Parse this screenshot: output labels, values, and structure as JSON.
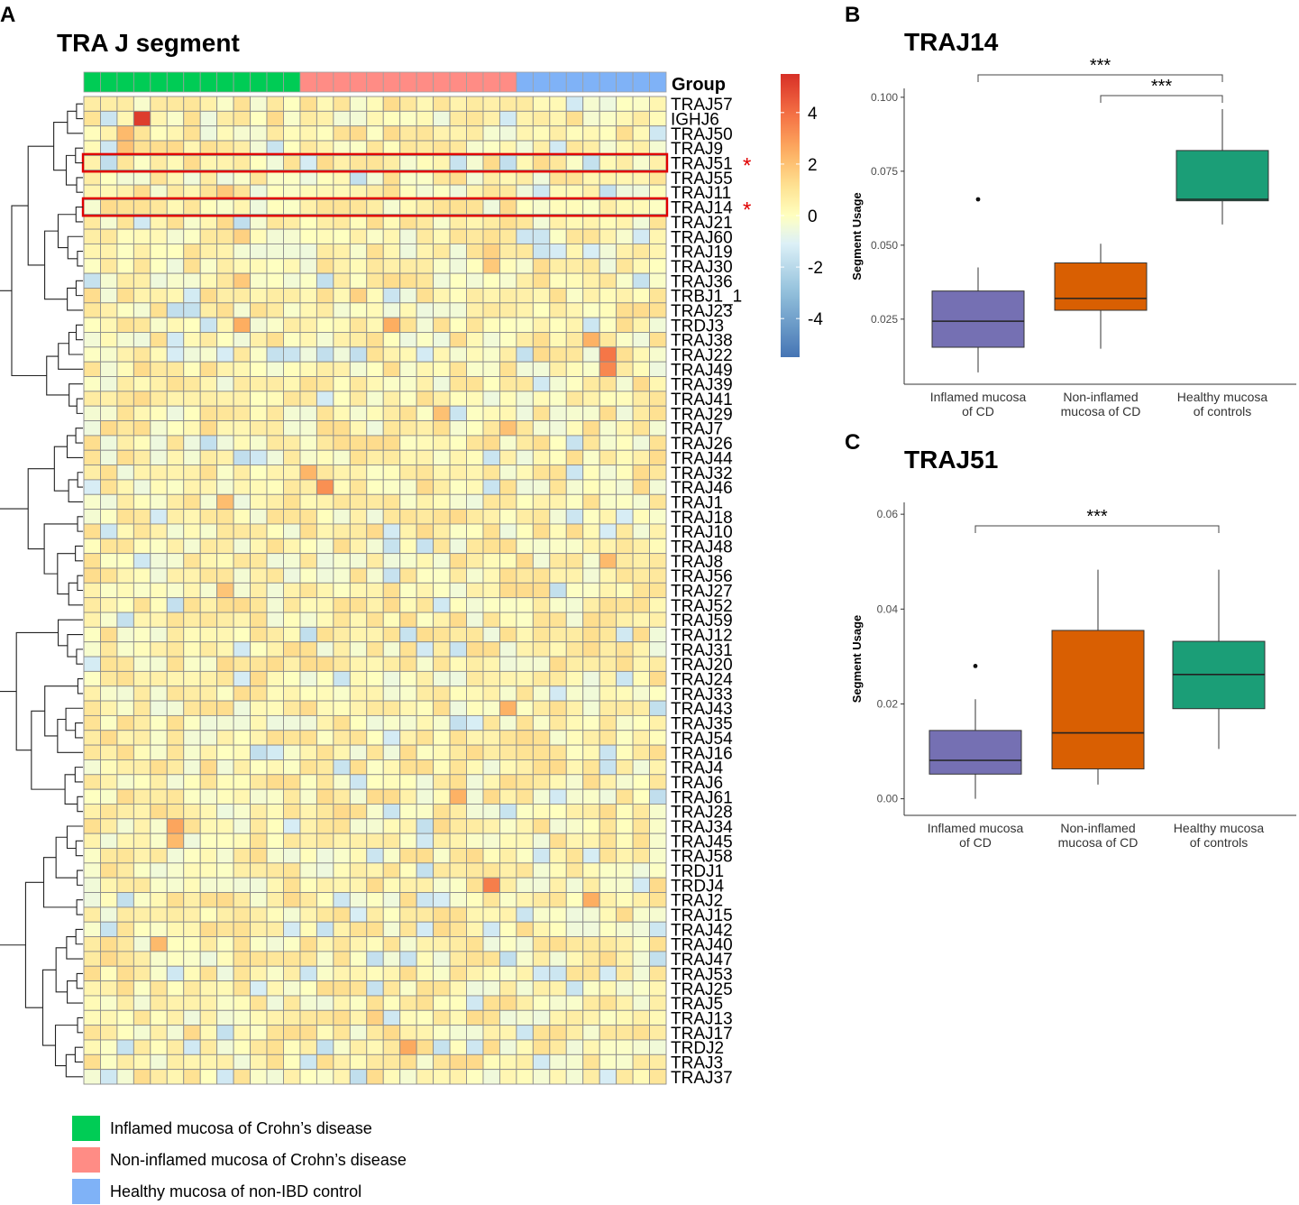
{
  "panels": {
    "a": {
      "letter": "A",
      "title": "TRA J segment"
    },
    "b": {
      "letter": "B"
    },
    "c": {
      "letter": "C"
    }
  },
  "colors": {
    "group_inflamed": "#00cc55",
    "group_noninflamed": "#ff8c85",
    "group_healthy": "#7fb2f7",
    "box_inflamed": "#7570b3",
    "box_noninflamed": "#d95f02",
    "box_healthy": "#1b9e77",
    "highlight": "#e00000"
  },
  "chart_data": [
    {
      "type": "heatmap",
      "panel": "A",
      "title": "TRA J segment",
      "column_annotation_label": "Group",
      "column_groups": [
        {
          "name": "Inflamed mucosa of Crohn’s disease",
          "count": 13
        },
        {
          "name": "Non-inflamed mucosa of Crohn’s disease",
          "count": 13
        },
        {
          "name": "Healthy mucosa of non-IBD control",
          "count": 9
        }
      ],
      "row_labels": [
        "TRAJ57",
        "IGHJ6",
        "TRAJ50",
        "TRAJ9",
        "TRAJ51",
        "TRAJ55",
        "TRAJ11",
        "TRAJ14",
        "TRAJ21",
        "TRAJ60",
        "TRAJ19",
        "TRAJ30",
        "TRAJ36",
        "TRBJ1_1",
        "TRAJ23",
        "TRDJ3",
        "TRAJ38",
        "TRAJ22",
        "TRAJ49",
        "TRAJ39",
        "TRAJ41",
        "TRAJ29",
        "TRAJ7",
        "TRAJ26",
        "TRAJ44",
        "TRAJ32",
        "TRAJ46",
        "TRAJ1",
        "TRAJ18",
        "TRAJ10",
        "TRAJ48",
        "TRAJ8",
        "TRAJ56",
        "TRAJ27",
        "TRAJ52",
        "TRAJ59",
        "TRAJ12",
        "TRAJ31",
        "TRAJ20",
        "TRAJ24",
        "TRAJ33",
        "TRAJ43",
        "TRAJ35",
        "TRAJ54",
        "TRAJ16",
        "TRAJ4",
        "TRAJ6",
        "TRAJ61",
        "TRAJ28",
        "TRAJ34",
        "TRAJ45",
        "TRAJ58",
        "TRDJ1",
        "TRDJ4",
        "TRAJ2",
        "TRAJ15",
        "TRAJ42",
        "TRAJ40",
        "TRAJ47",
        "TRAJ53",
        "TRAJ25",
        "TRAJ5",
        "TRAJ13",
        "TRAJ17",
        "TRDJ2",
        "TRAJ3",
        "TRAJ37"
      ],
      "highlighted_rows": [
        "TRAJ51",
        "TRAJ14"
      ],
      "highlight_marker": "*",
      "colorbar": {
        "ticks": [
          4,
          2,
          0,
          -2,
          -4
        ],
        "range": [
          -5.5,
          5.5
        ],
        "low_color": "#4575b4",
        "mid_color": "#ffffbf",
        "high_color": "#d73027"
      },
      "notable_cells": [
        {
          "row": "IGHJ6",
          "col": 3,
          "value": 5.2
        },
        {
          "row": "TRAJ50",
          "col": 2,
          "value": 2.2
        },
        {
          "row": "TRAJ9",
          "col": 2,
          "value": 2.0
        },
        {
          "row": "TRAJ11",
          "col": 8,
          "value": 1.8
        },
        {
          "row": "TRAJ60",
          "col": 9,
          "value": 1.6
        },
        {
          "row": "TRAJ19",
          "col": 24,
          "value": 1.6
        },
        {
          "row": "TRAJ30",
          "col": 24,
          "value": 1.8
        },
        {
          "row": "TRAJ36",
          "col": 9,
          "value": 1.8
        },
        {
          "row": "TRBJ1_1",
          "col": 16,
          "value": 1.6
        },
        {
          "row": "TRDJ3",
          "col": 9,
          "value": 2.5
        },
        {
          "row": "TRDJ3",
          "col": 18,
          "value": 2.5
        },
        {
          "row": "TRAJ38",
          "col": 30,
          "value": 2.4
        },
        {
          "row": "TRAJ22",
          "col": 31,
          "value": 3.8
        },
        {
          "row": "TRAJ49",
          "col": 31,
          "value": 3.4
        },
        {
          "row": "TRAJ29",
          "col": 21,
          "value": 2.0
        },
        {
          "row": "TRAJ7",
          "col": 25,
          "value": 2.0
        },
        {
          "row": "TRAJ32",
          "col": 13,
          "value": 2.3
        },
        {
          "row": "TRAJ46",
          "col": 14,
          "value": 3.2
        },
        {
          "row": "TRAJ1",
          "col": 8,
          "value": 2.1
        },
        {
          "row": "TRAJ8",
          "col": 31,
          "value": 2.2
        },
        {
          "row": "TRAJ27",
          "col": 8,
          "value": 1.9
        },
        {
          "row": "TRAJ43",
          "col": 25,
          "value": 2.4
        },
        {
          "row": "TRAJ61",
          "col": 22,
          "value": 2.4
        },
        {
          "row": "TRAJ34",
          "col": 5,
          "value": 2.7
        },
        {
          "row": "TRAJ45",
          "col": 5,
          "value": 2.2
        },
        {
          "row": "TRDJ4",
          "col": 24,
          "value": 3.6
        },
        {
          "row": "TRAJ2",
          "col": 30,
          "value": 2.5
        },
        {
          "row": "TRAJ40",
          "col": 4,
          "value": 2.2
        },
        {
          "row": "TRAJ13",
          "col": 17,
          "value": 1.6
        },
        {
          "row": "TRDJ2",
          "col": 19,
          "value": 2.6
        }
      ]
    },
    {
      "type": "box",
      "panel": "B",
      "title": "TRAJ14",
      "ylabel": "Segment Usage",
      "xlabel": "",
      "ylim": [
        0.003,
        0.103
      ],
      "yticks": [
        "0.025",
        "0.050",
        "0.075",
        "0.100"
      ],
      "categories": [
        "Inflamed mucosa\nof CD",
        "Non-inflamed\nmucosa of CD",
        "Healthy mucosa\nof controls"
      ],
      "boxes": [
        {
          "min": 0.007,
          "q1": 0.0155,
          "median": 0.0243,
          "q3": 0.0345,
          "max": 0.0425,
          "outliers": [
            0.0655
          ]
        },
        {
          "min": 0.015,
          "q1": 0.028,
          "median": 0.032,
          "q3": 0.044,
          "max": 0.0505,
          "outliers": []
        },
        {
          "min": 0.057,
          "q1": 0.065,
          "median": 0.0655,
          "q3": 0.082,
          "max": 0.096,
          "outliers": []
        }
      ],
      "significance": [
        {
          "from": 0,
          "to": 2,
          "label": "***"
        },
        {
          "from": 1,
          "to": 2,
          "label": "***"
        }
      ]
    },
    {
      "type": "box",
      "panel": "C",
      "title": "TRAJ51",
      "ylabel": "Segment Usage",
      "xlabel": "",
      "ylim": [
        -0.0035,
        0.0625
      ],
      "yticks": [
        "0.00",
        "0.02",
        "0.04",
        "0.06"
      ],
      "categories": [
        "Inflamed mucosa\nof CD",
        "Non-inflamed\nmucosa of CD",
        "Healthy mucosa\nof controls"
      ],
      "boxes": [
        {
          "min": 0.0,
          "q1": 0.0052,
          "median": 0.0081,
          "q3": 0.0144,
          "max": 0.021,
          "outliers": [
            0.028
          ]
        },
        {
          "min": 0.003,
          "q1": 0.0063,
          "median": 0.0139,
          "q3": 0.0355,
          "max": 0.0483,
          "outliers": []
        },
        {
          "min": 0.0105,
          "q1": 0.019,
          "median": 0.0262,
          "q3": 0.0332,
          "max": 0.0483,
          "outliers": []
        }
      ],
      "significance": [
        {
          "from": 0,
          "to": 2,
          "label": "***"
        }
      ]
    }
  ],
  "legend": {
    "items": [
      {
        "label": "Inflamed mucosa of Crohn’s disease"
      },
      {
        "label": "Non-inflamed mucosa of Crohn’s disease"
      },
      {
        "label": "Healthy mucosa of non-IBD control"
      }
    ]
  }
}
